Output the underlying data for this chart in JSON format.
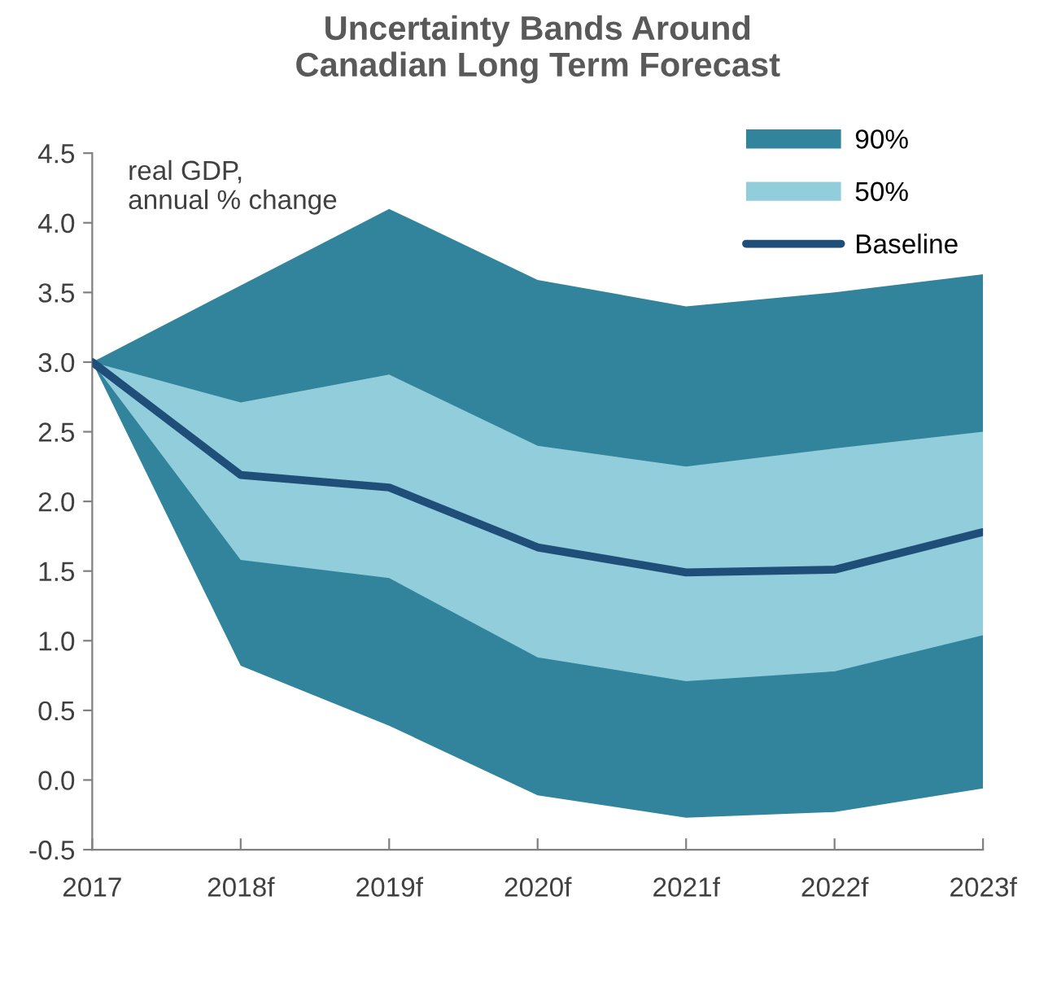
{
  "chart_data": {
    "type": "line",
    "title": "Uncertainty Bands Around\nCanadian Long Term Forecast",
    "ylabel": "real GDP,\nannual % change",
    "categories": [
      "2017",
      "2018f",
      "2019f",
      "2020f",
      "2021f",
      "2022f",
      "2023f"
    ],
    "series": [
      {
        "name": "90%",
        "color": "#31849b",
        "values": [
          null,
          null,
          null,
          null,
          null,
          null,
          null
        ],
        "upper": [
          3.0,
          3.55,
          4.1,
          3.59,
          3.4,
          3.5,
          3.63
        ],
        "lower": [
          3.0,
          0.82,
          0.39,
          -0.11,
          -0.27,
          -0.23,
          -0.06
        ]
      },
      {
        "name": "50%",
        "color": "#92cddc",
        "values": [
          null,
          null,
          null,
          null,
          null,
          null,
          null
        ],
        "upper": [
          3.0,
          2.71,
          2.91,
          2.4,
          2.25,
          2.38,
          2.5
        ],
        "lower": [
          3.0,
          1.58,
          1.45,
          0.88,
          0.71,
          0.78,
          1.04
        ]
      },
      {
        "name": "Baseline",
        "color": "#1f4e79",
        "values": [
          3.0,
          2.19,
          2.1,
          1.67,
          1.49,
          1.51,
          1.78
        ]
      }
    ],
    "ylim": [
      -0.5,
      4.5
    ],
    "yticks": [
      -0.5,
      {
        "value": 0,
        "label": "0.0"
      },
      0.5,
      {
        "value": 1,
        "label": "1.0"
      },
      1.5,
      {
        "value": 2,
        "label": "2.0"
      },
      2.5,
      {
        "value": 3,
        "label": "3.0"
      },
      3.5,
      {
        "value": 4,
        "label": "4.0"
      },
      4.5
    ],
    "grid": false,
    "legend": "top right",
    "line_style": "solid",
    "marker": "none"
  }
}
